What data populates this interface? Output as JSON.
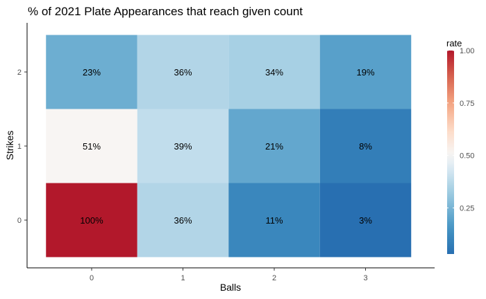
{
  "chart_data": {
    "type": "heatmap",
    "title": "% of 2021 Plate Appearances that reach given count",
    "xlabel": "Balls",
    "ylabel": "Strikes",
    "x_categories": [
      "0",
      "1",
      "2",
      "3"
    ],
    "y_categories": [
      "0",
      "1",
      "2"
    ],
    "cells": [
      {
        "balls": 0,
        "strikes": 2,
        "rate": 0.23,
        "label": "23%"
      },
      {
        "balls": 1,
        "strikes": 2,
        "rate": 0.36,
        "label": "36%"
      },
      {
        "balls": 2,
        "strikes": 2,
        "rate": 0.34,
        "label": "34%"
      },
      {
        "balls": 3,
        "strikes": 2,
        "rate": 0.19,
        "label": "19%"
      },
      {
        "balls": 0,
        "strikes": 1,
        "rate": 0.51,
        "label": "51%"
      },
      {
        "balls": 1,
        "strikes": 1,
        "rate": 0.39,
        "label": "39%"
      },
      {
        "balls": 2,
        "strikes": 1,
        "rate": 0.21,
        "label": "21%"
      },
      {
        "balls": 3,
        "strikes": 1,
        "rate": 0.08,
        "label": "8%"
      },
      {
        "balls": 0,
        "strikes": 0,
        "rate": 1.0,
        "label": "100%"
      },
      {
        "balls": 1,
        "strikes": 0,
        "rate": 0.36,
        "label": "36%"
      },
      {
        "balls": 2,
        "strikes": 0,
        "rate": 0.11,
        "label": "11%"
      },
      {
        "balls": 3,
        "strikes": 0,
        "rate": 0.03,
        "label": "3%"
      }
    ],
    "legend": {
      "title": "rate",
      "placement": "right",
      "range": [
        0.03,
        1.0
      ],
      "ticks": [
        0.25,
        0.5,
        0.75,
        1.0
      ],
      "tick_labels": [
        "0.25",
        "0.50",
        "0.75",
        "1.00"
      ]
    },
    "color_scale": {
      "low": "#2166ac",
      "mid": "#f7f7f7",
      "high": "#b2182b",
      "midpoint": 0.5
    },
    "grid": false
  }
}
